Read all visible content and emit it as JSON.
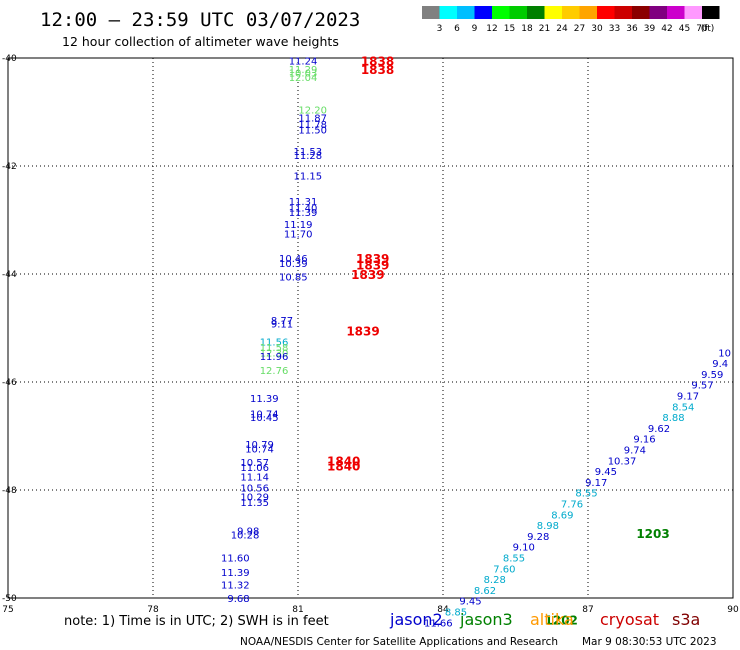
{
  "header": {
    "title": "12:00 – 23:59 UTC 03/07/2023",
    "subtitle": "12 hour collection of altimeter wave heights"
  },
  "color_scale": {
    "colors": [
      "#808080",
      "#00ffff",
      "#00bfff",
      "#0000ff",
      "#00ff00",
      "#00cc00",
      "#008000",
      "#ffff00",
      "#ffcc00",
      "#ffa500",
      "#ff0000",
      "#cc0000",
      "#8b0000",
      "#800080",
      "#cc00cc",
      "#ff99ff",
      "#000000"
    ],
    "labels": [
      "3",
      "6",
      "9",
      "12",
      "15",
      "18",
      "21",
      "24",
      "27",
      "30",
      "33",
      "36",
      "39",
      "42",
      "45",
      "70"
    ],
    "unit": "(ft)"
  },
  "note": "note:  1) Time is in UTC;  2) SWH is in feet",
  "satellites": [
    {
      "name": "jason2",
      "color": "#0000cc"
    },
    {
      "name": "jason3",
      "color": "#008000"
    },
    {
      "name": "altika",
      "color": "#ff9900"
    },
    {
      "name": "cryosat",
      "color": "#cc0000"
    },
    {
      "name": "s3a",
      "color": "#800000"
    }
  ],
  "footer": {
    "left": "NOAA/NESDIS Center for Satellite Applications and Research",
    "right": "Mar  9 08:30:53 UTC 2023"
  },
  "chart_data": {
    "type": "scatter",
    "x_ticks": [
      "75",
      "78",
      "81",
      "84",
      "87",
      "90"
    ],
    "y_ticks": [
      "-40",
      "-42",
      "-44",
      "-46",
      "-48",
      "-50"
    ],
    "xlim": [
      75,
      90
    ],
    "ylim": [
      -50,
      -40
    ],
    "grid": true,
    "wave_heights": [
      {
        "lon": 81.4,
        "lat": -40.05,
        "label": "11.24",
        "color": "#0000cc"
      },
      {
        "lon": 81.4,
        "lat": -40.2,
        "label": "11.29",
        "color": "#66dd66"
      },
      {
        "lon": 81.4,
        "lat": -40.27,
        "label": "10.03",
        "color": "#66dd66"
      },
      {
        "lon": 81.4,
        "lat": -40.35,
        "label": "12.04",
        "color": "#66dd66"
      },
      {
        "lon": 81.6,
        "lat": -40.95,
        "label": "12.20",
        "color": "#66dd66"
      },
      {
        "lon": 81.6,
        "lat": -41.1,
        "label": "11.87",
        "color": "#0000cc"
      },
      {
        "lon": 81.6,
        "lat": -41.22,
        "label": "11.78",
        "color": "#0000cc"
      },
      {
        "lon": 81.6,
        "lat": -41.32,
        "label": "11.50",
        "color": "#0000cc"
      },
      {
        "lon": 81.5,
        "lat": -41.72,
        "label": "11.53",
        "color": "#0000cc"
      },
      {
        "lon": 81.5,
        "lat": -41.8,
        "label": "11.28",
        "color": "#0000cc"
      },
      {
        "lon": 81.5,
        "lat": -42.18,
        "label": "11.15",
        "color": "#0000cc"
      },
      {
        "lon": 81.4,
        "lat": -42.65,
        "label": "11.31",
        "color": "#0000cc"
      },
      {
        "lon": 81.4,
        "lat": -42.77,
        "label": "11.40",
        "color": "#0000cc"
      },
      {
        "lon": 81.4,
        "lat": -42.85,
        "label": "11.39",
        "color": "#0000cc"
      },
      {
        "lon": 81.3,
        "lat": -43.07,
        "label": "11.19",
        "color": "#0000cc"
      },
      {
        "lon": 81.3,
        "lat": -43.25,
        "label": "11.70",
        "color": "#0000cc"
      },
      {
        "lon": 81.2,
        "lat": -43.7,
        "label": "10.46",
        "color": "#0000cc"
      },
      {
        "lon": 81.2,
        "lat": -43.8,
        "label": "10.39",
        "color": "#0000cc"
      },
      {
        "lon": 81.2,
        "lat": -44.05,
        "label": "10.85",
        "color": "#0000cc"
      },
      {
        "lon": 80.9,
        "lat": -44.85,
        "label": "8.77",
        "color": "#0000cc"
      },
      {
        "lon": 80.9,
        "lat": -44.92,
        "label": "9.11",
        "color": "#0000cc"
      },
      {
        "lon": 80.8,
        "lat": -45.25,
        "label": "11.56",
        "color": "#00aacc"
      },
      {
        "lon": 80.8,
        "lat": -45.35,
        "label": "11.58",
        "color": "#66dd66"
      },
      {
        "lon": 80.8,
        "lat": -45.45,
        "label": "12.30",
        "color": "#66dd66"
      },
      {
        "lon": 80.8,
        "lat": -45.52,
        "label": "11.96",
        "color": "#0000cc"
      },
      {
        "lon": 80.8,
        "lat": -45.78,
        "label": "12.76",
        "color": "#66dd66"
      },
      {
        "lon": 80.6,
        "lat": -46.3,
        "label": "11.39",
        "color": "#0000cc"
      },
      {
        "lon": 80.6,
        "lat": -46.58,
        "label": "10.74",
        "color": "#0000cc"
      },
      {
        "lon": 80.6,
        "lat": -46.65,
        "label": "10.45",
        "color": "#0000cc"
      },
      {
        "lon": 80.5,
        "lat": -47.15,
        "label": "10.79",
        "color": "#0000cc"
      },
      {
        "lon": 80.5,
        "lat": -47.23,
        "label": "10.74",
        "color": "#0000cc"
      },
      {
        "lon": 80.4,
        "lat": -47.48,
        "label": "10.57",
        "color": "#0000cc"
      },
      {
        "lon": 80.4,
        "lat": -47.57,
        "label": "11.06",
        "color": "#0000cc"
      },
      {
        "lon": 80.4,
        "lat": -47.75,
        "label": "11.14",
        "color": "#0000cc"
      },
      {
        "lon": 80.4,
        "lat": -47.95,
        "label": "10.56",
        "color": "#0000cc"
      },
      {
        "lon": 80.4,
        "lat": -48.12,
        "label": "10.29",
        "color": "#0000cc"
      },
      {
        "lon": 80.4,
        "lat": -48.22,
        "label": "11.35",
        "color": "#0000cc"
      },
      {
        "lon": 80.2,
        "lat": -48.75,
        "label": "9.98",
        "color": "#0000cc"
      },
      {
        "lon": 80.2,
        "lat": -48.82,
        "label": "10.28",
        "color": "#0000cc"
      },
      {
        "lon": 80.0,
        "lat": -49.25,
        "label": "11.60",
        "color": "#0000cc"
      },
      {
        "lon": 80.0,
        "lat": -49.52,
        "label": "11.39",
        "color": "#0000cc"
      },
      {
        "lon": 80.0,
        "lat": -49.75,
        "label": "11.32",
        "color": "#0000cc"
      },
      {
        "lon": 80.0,
        "lat": -50.0,
        "label": "9.68",
        "color": "#0000cc"
      },
      {
        "lon": 90.0,
        "lat": -45.45,
        "label": "10",
        "color": "#0000cc"
      },
      {
        "lon": 89.9,
        "lat": -45.65,
        "label": "9.4",
        "color": "#0000cc"
      },
      {
        "lon": 89.8,
        "lat": -45.85,
        "label": "9.59",
        "color": "#0000cc"
      },
      {
        "lon": 89.6,
        "lat": -46.05,
        "label": "9.57",
        "color": "#0000cc"
      },
      {
        "lon": 89.3,
        "lat": -46.25,
        "label": "9.17",
        "color": "#0000cc"
      },
      {
        "lon": 89.2,
        "lat": -46.45,
        "label": "8.54",
        "color": "#00aacc"
      },
      {
        "lon": 89.0,
        "lat": -46.65,
        "label": "8.88",
        "color": "#00aacc"
      },
      {
        "lon": 88.7,
        "lat": -46.85,
        "label": "9.62",
        "color": "#0000cc"
      },
      {
        "lon": 88.4,
        "lat": -47.05,
        "label": "9.16",
        "color": "#0000cc"
      },
      {
        "lon": 88.2,
        "lat": -47.25,
        "label": "9.74",
        "color": "#0000cc"
      },
      {
        "lon": 88.0,
        "lat": -47.45,
        "label": "10.37",
        "color": "#0000cc"
      },
      {
        "lon": 87.6,
        "lat": -47.65,
        "label": "9.45",
        "color": "#0000cc"
      },
      {
        "lon": 87.4,
        "lat": -47.85,
        "label": "9.17",
        "color": "#0000cc"
      },
      {
        "lon": 87.2,
        "lat": -48.05,
        "label": "8.55",
        "color": "#00aacc"
      },
      {
        "lon": 86.9,
        "lat": -48.25,
        "label": "7.76",
        "color": "#00aacc"
      },
      {
        "lon": 86.7,
        "lat": -48.45,
        "label": "8.69",
        "color": "#00aacc"
      },
      {
        "lon": 86.4,
        "lat": -48.65,
        "label": "8.98",
        "color": "#00aacc"
      },
      {
        "lon": 86.2,
        "lat": -48.85,
        "label": "9.28",
        "color": "#0000cc"
      },
      {
        "lon": 85.9,
        "lat": -49.05,
        "label": "9.10",
        "color": "#0000cc"
      },
      {
        "lon": 85.7,
        "lat": -49.25,
        "label": "8.55",
        "color": "#00aacc"
      },
      {
        "lon": 85.5,
        "lat": -49.45,
        "label": "7.60",
        "color": "#00aacc"
      },
      {
        "lon": 85.3,
        "lat": -49.65,
        "label": "8.28",
        "color": "#00aacc"
      },
      {
        "lon": 85.1,
        "lat": -49.85,
        "label": "8.62",
        "color": "#00aacc"
      },
      {
        "lon": 84.8,
        "lat": -50.05,
        "label": "9.45",
        "color": "#0000cc"
      },
      {
        "lon": 84.5,
        "lat": -50.25,
        "label": "8.85",
        "color": "#00aacc"
      },
      {
        "lon": 84.2,
        "lat": -50.45,
        "label": "11.66",
        "color": "#0000cc"
      }
    ],
    "pass_times": [
      {
        "lon": 82.3,
        "lat": -40.05,
        "label": "1838",
        "color": "#ee0000"
      },
      {
        "lon": 82.3,
        "lat": -40.2,
        "label": "1838",
        "color": "#ee0000"
      },
      {
        "lon": 82.2,
        "lat": -43.7,
        "label": "1839",
        "color": "#ee0000"
      },
      {
        "lon": 82.2,
        "lat": -43.82,
        "label": "1839",
        "color": "#ee0000"
      },
      {
        "lon": 82.1,
        "lat": -44.0,
        "label": "1839",
        "color": "#ee0000"
      },
      {
        "lon": 82.0,
        "lat": -45.05,
        "label": "1839",
        "color": "#ee0000"
      },
      {
        "lon": 81.6,
        "lat": -47.45,
        "label": "1840",
        "color": "#ee0000"
      },
      {
        "lon": 81.6,
        "lat": -47.55,
        "label": "1840",
        "color": "#ee0000"
      },
      {
        "lon": 88.0,
        "lat": -48.8,
        "label": "1203",
        "color": "#008000"
      },
      {
        "lon": 86.1,
        "lat": -50.4,
        "label": "1202",
        "color": "#008000"
      }
    ]
  }
}
